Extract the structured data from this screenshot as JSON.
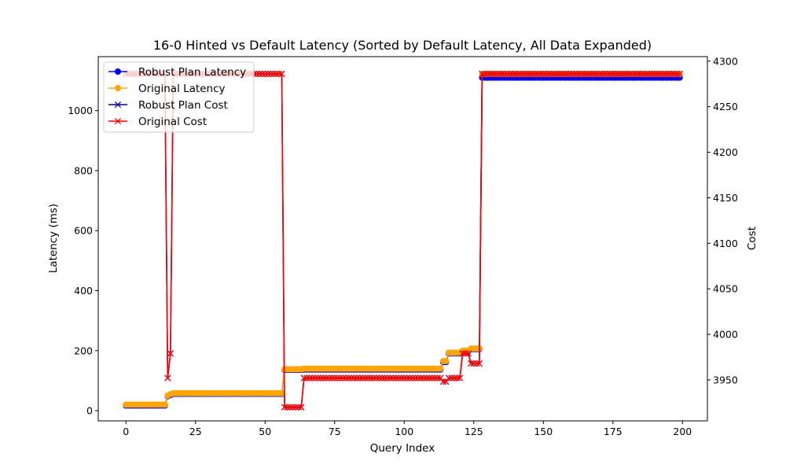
{
  "chart_data": {
    "type": "line",
    "title": "16-0 Hinted vs Default Latency (Sorted by Default Latency, All Data Expanded)",
    "xlabel": "Query Index",
    "ylabel_left": "Latency (ms)",
    "ylabel_right": "Cost",
    "xlim": [
      -9.95,
      208.95
    ],
    "ylim_left": [
      -34,
      1180
    ],
    "ylim_right": [
      3905,
      4305
    ],
    "xticks": [
      0,
      25,
      50,
      75,
      100,
      125,
      150,
      175,
      200
    ],
    "yticks_left": [
      0,
      200,
      400,
      600,
      800,
      1000
    ],
    "yticks_right": [
      3950,
      4000,
      4050,
      4100,
      4150,
      4200,
      4250,
      4300
    ],
    "legend_position": "upper-left",
    "grid": false,
    "series": [
      {
        "name": "Robust Plan Latency",
        "axis": "left",
        "marker": "circle",
        "color": "#0000ff",
        "segments": [
          {
            "x_start": 0,
            "x_end": 14,
            "y": 17
          },
          {
            "x_start": 15,
            "x_end": 15,
            "y": 48
          },
          {
            "x_start": 16,
            "x_end": 16,
            "y": 52
          },
          {
            "x_start": 17,
            "x_end": 56,
            "y": 56
          },
          {
            "x_start": 57,
            "x_end": 63,
            "y": 136
          },
          {
            "x_start": 64,
            "x_end": 113,
            "y": 137
          },
          {
            "x_start": 114,
            "x_end": 115,
            "y": 162
          },
          {
            "x_start": 116,
            "x_end": 120,
            "y": 191
          },
          {
            "x_start": 121,
            "x_end": 123,
            "y": 197
          },
          {
            "x_start": 124,
            "x_end": 127,
            "y": 205
          },
          {
            "x_start": 128,
            "x_end": 199,
            "y": 1110
          }
        ]
      },
      {
        "name": "Original Latency",
        "axis": "left",
        "marker": "circle",
        "color": "#ffa500",
        "segments": [
          {
            "x_start": 0,
            "x_end": 14,
            "y": 20
          },
          {
            "x_start": 15,
            "x_end": 15,
            "y": 50
          },
          {
            "x_start": 16,
            "x_end": 16,
            "y": 55
          },
          {
            "x_start": 17,
            "x_end": 56,
            "y": 58
          },
          {
            "x_start": 57,
            "x_end": 63,
            "y": 138
          },
          {
            "x_start": 64,
            "x_end": 113,
            "y": 140
          },
          {
            "x_start": 114,
            "x_end": 115,
            "y": 165
          },
          {
            "x_start": 116,
            "x_end": 120,
            "y": 193
          },
          {
            "x_start": 121,
            "x_end": 123,
            "y": 200
          },
          {
            "x_start": 124,
            "x_end": 127,
            "y": 207
          },
          {
            "x_start": 128,
            "x_end": 199,
            "y": 1122
          }
        ]
      },
      {
        "name": "Robust Plan Cost",
        "axis": "right",
        "marker": "x",
        "color": "#00008b",
        "segments": [
          {
            "x_start": 0,
            "x_end": 14,
            "y": 4286
          },
          {
            "x_start": 15,
            "x_end": 15,
            "y": 3952
          },
          {
            "x_start": 16,
            "x_end": 16,
            "y": 3979
          },
          {
            "x_start": 17,
            "x_end": 56,
            "y": 4286
          },
          {
            "x_start": 57,
            "x_end": 63,
            "y": 3920
          },
          {
            "x_start": 64,
            "x_end": 113,
            "y": 3952
          },
          {
            "x_start": 114,
            "x_end": 115,
            "y": 3948
          },
          {
            "x_start": 116,
            "x_end": 120,
            "y": 3952
          },
          {
            "x_start": 121,
            "x_end": 123,
            "y": 3979
          },
          {
            "x_start": 124,
            "x_end": 127,
            "y": 3968
          },
          {
            "x_start": 128,
            "x_end": 199,
            "y": 4286
          }
        ]
      },
      {
        "name": "Original Cost",
        "axis": "right",
        "marker": "x",
        "color": "#ff0000",
        "segments": [
          {
            "x_start": 0,
            "x_end": 14,
            "y": 4286
          },
          {
            "x_start": 15,
            "x_end": 15,
            "y": 3952
          },
          {
            "x_start": 16,
            "x_end": 16,
            "y": 3979
          },
          {
            "x_start": 17,
            "x_end": 56,
            "y": 4286
          },
          {
            "x_start": 57,
            "x_end": 63,
            "y": 3920
          },
          {
            "x_start": 64,
            "x_end": 113,
            "y": 3952
          },
          {
            "x_start": 114,
            "x_end": 115,
            "y": 3948
          },
          {
            "x_start": 116,
            "x_end": 120,
            "y": 3952
          },
          {
            "x_start": 121,
            "x_end": 123,
            "y": 3979
          },
          {
            "x_start": 124,
            "x_end": 127,
            "y": 3968
          },
          {
            "x_start": 128,
            "x_end": 199,
            "y": 4286
          }
        ]
      }
    ]
  }
}
